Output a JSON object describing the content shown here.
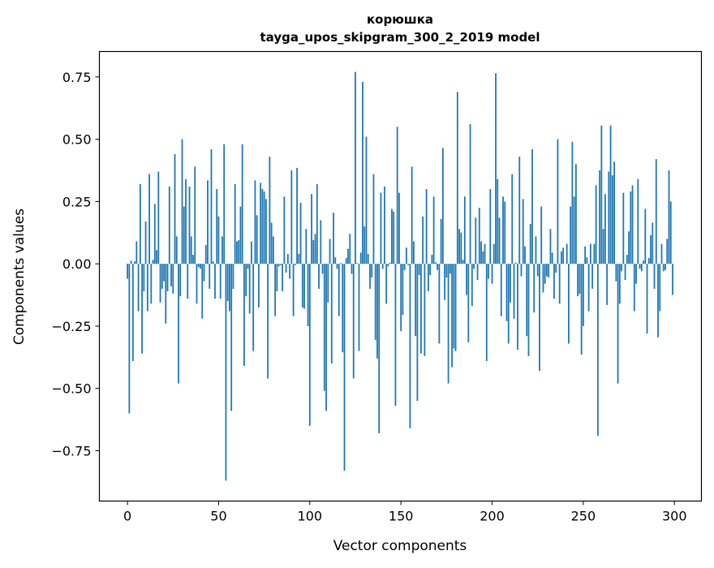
{
  "chart_data": {
    "type": "bar",
    "title": "корюшка",
    "subtitle": "tayga_upos_skipgram_300_2_2019 model",
    "xlabel": "Vector components",
    "ylabel": "Components values",
    "xlim": [
      -15.4,
      314.8
    ],
    "ylim": [
      -0.952,
      0.852
    ],
    "xticks": [
      0,
      50,
      100,
      150,
      200,
      250,
      300
    ],
    "xtick_labels": [
      "0",
      "50",
      "100",
      "150",
      "200",
      "250",
      "300"
    ],
    "yticks": [
      -0.75,
      -0.5,
      -0.25,
      0,
      0.25,
      0.5,
      0.75
    ],
    "ytick_labels": [
      "−0.75",
      "−0.50",
      "−0.25",
      "0.00",
      "0.25",
      "0.50",
      "0.75"
    ],
    "grid": false,
    "bar_color": "#1f77b4",
    "values": [
      -0.06,
      -0.6,
      0.013,
      -0.39,
      0.01,
      0.09,
      -0.19,
      0.32,
      -0.36,
      -0.11,
      0.17,
      -0.19,
      0.36,
      -0.16,
      0.016,
      0.24,
      0.055,
      0.37,
      -0.155,
      -0.1,
      -0.07,
      -0.24,
      -0.11,
      0.31,
      -0.09,
      -0.12,
      0.44,
      0.11,
      -0.48,
      -0.13,
      0.5,
      0.23,
      0.34,
      -0.14,
      0.31,
      0.11,
      0.036,
      0.39,
      -0.16,
      -0.013,
      -0.02,
      -0.22,
      -0.07,
      0.075,
      0.335,
      -0.1,
      0.46,
      0.01,
      -0.14,
      0.3,
      0.19,
      -0.14,
      0.11,
      0.48,
      -0.87,
      -0.15,
      -0.19,
      -0.59,
      -0.1,
      0.32,
      0.09,
      0.095,
      0.23,
      0.48,
      -0.41,
      -0.13,
      -0.02,
      -0.2,
      0.09,
      -0.35,
      0.335,
      0.195,
      -0.175,
      0.325,
      0.3,
      0.29,
      0.26,
      -0.46,
      0.43,
      0.165,
      0.11,
      -0.21,
      -0.11,
      -0.01,
      -0.005,
      -0.11,
      0.27,
      -0.035,
      0.04,
      -0.06,
      0.375,
      -0.21,
      -0.005,
      0.385,
      0.04,
      0.245,
      -0.175,
      -0.18,
      0.14,
      -0.25,
      -0.65,
      0.28,
      0.095,
      0.12,
      0.32,
      -0.1,
      0.175,
      -0.04,
      -0.51,
      -0.59,
      -0.155,
      0.1,
      -0.4,
      0.205,
      0.026,
      -0.02,
      -0.21,
      0.003,
      -0.355,
      -0.83,
      0.023,
      0.06,
      0.12,
      -0.04,
      -0.46,
      0.77,
      0.003,
      -0.35,
      0.045,
      0.73,
      0.15,
      0.51,
      0.04,
      -0.1,
      -0.055,
      0.36,
      -0.305,
      -0.38,
      -0.68,
      0.285,
      -0.02,
      0.31,
      -0.16,
      -0.01,
      0.005,
      0.22,
      0.21,
      -0.57,
      0.55,
      0.285,
      -0.27,
      -0.205,
      -0.025,
      0.065,
      -0.005,
      -0.66,
      0.39,
      0.09,
      -0.29,
      -0.55,
      -0.045,
      -0.36,
      0.19,
      -0.37,
      0.3,
      -0.11,
      -0.045,
      0.036,
      0.27,
      0.006,
      -0.025,
      -0.32,
      0.18,
      0.465,
      -0.145,
      -0.055,
      -0.48,
      -0.04,
      -0.415,
      -0.34,
      -0.35,
      0.69,
      0.14,
      0.125,
      0.016,
      0.27,
      -0.125,
      -0.315,
      0.56,
      -0.17,
      -0.02,
      0.185,
      -0.065,
      0.225,
      0.09,
      0.05,
      0.08,
      -0.39,
      -0.06,
      0.3,
      -0.08,
      0.08,
      0.765,
      0.34,
      0.185,
      -0.21,
      0.27,
      0.25,
      -0.23,
      -0.32,
      -0.155,
      0.36,
      -0.22,
      0.005,
      -0.345,
      0.43,
      -0.05,
      0.26,
      0.07,
      -0.29,
      -0.37,
      0.16,
      0.46,
      -0.195,
      0.11,
      -0.05,
      -0.43,
      0.23,
      -0.115,
      -0.08,
      -0.05,
      -0.055,
      0.14,
      0.045,
      -0.14,
      -0.035,
      0.5,
      -0.16,
      0.05,
      0.065,
      0.0,
      0.08,
      -0.32,
      0.23,
      0.49,
      0.27,
      0.4,
      -0.13,
      -0.12,
      -0.365,
      -0.25,
      0.07,
      0.026,
      -0.19,
      0.08,
      -0.1,
      0.08,
      0.315,
      -0.69,
      0.375,
      0.555,
      0.14,
      0.28,
      -0.165,
      0.37,
      0.555,
      0.355,
      0.41,
      -0.07,
      -0.48,
      -0.16,
      -0.03,
      0.285,
      -0.065,
      0.036,
      0.13,
      0.29,
      0.315,
      -0.19,
      -0.08,
      0.34,
      -0.02,
      -0.03,
      0.013,
      0.22,
      -0.28,
      0.023,
      0.115,
      0.165,
      -0.1,
      0.42,
      -0.295,
      -0.19,
      0.08,
      -0.03,
      -0.025,
      0.1,
      0.375,
      0.25,
      -0.125
    ]
  }
}
